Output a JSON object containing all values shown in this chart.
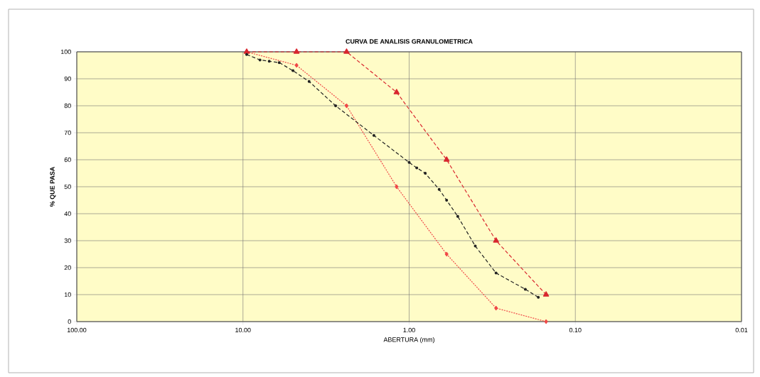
{
  "chart_data": {
    "type": "line",
    "title": "CURVA DE ANALISIS GRANULOMETRICA",
    "xlabel": "ABERTURA (mm)",
    "ylabel": "% QUE PASA",
    "log": "x",
    "grid": true,
    "xlim": [
      100,
      0.01
    ],
    "ylim": [
      0,
      100
    ],
    "xticks": [
      {
        "value": 100,
        "label": "100.00"
      },
      {
        "value": 10,
        "label": "10.00"
      },
      {
        "value": 1,
        "label": "1.00"
      },
      {
        "value": 0.1,
        "label": "0.10"
      },
      {
        "value": 0.01,
        "label": "0.01"
      }
    ],
    "yticks": [
      0,
      10,
      20,
      30,
      40,
      50,
      60,
      70,
      80,
      90,
      100
    ],
    "series": [
      {
        "color": "#f04848",
        "marker": "diamond",
        "line_style": "dotted",
        "x": [
          9.5,
          4.76,
          2.38,
          1.19,
          0.595,
          0.3,
          0.15
        ],
        "values": [
          100,
          95,
          80,
          50,
          25,
          5,
          0
        ]
      },
      {
        "color": "#d8262e",
        "marker": "triangle",
        "line_style": "dashed",
        "x": [
          9.5,
          4.76,
          2.38,
          1.19,
          0.595,
          0.3,
          0.15
        ],
        "values": [
          100,
          100,
          100,
          85,
          60,
          30,
          10
        ]
      },
      {
        "color": "#222222",
        "marker": "circle",
        "line_style": "dashed",
        "x": [
          9.5,
          7.9,
          6.95,
          6.05,
          5.0,
          4.0,
          2.77,
          1.63,
          1.0,
          0.9,
          0.8,
          0.66,
          0.595,
          0.51,
          0.4,
          0.3,
          0.2,
          0.167
        ],
        "values": [
          99,
          97,
          96.5,
          96,
          93,
          89,
          80,
          69,
          59,
          57,
          55,
          49,
          45,
          39,
          28,
          18,
          12,
          9
        ]
      }
    ]
  }
}
